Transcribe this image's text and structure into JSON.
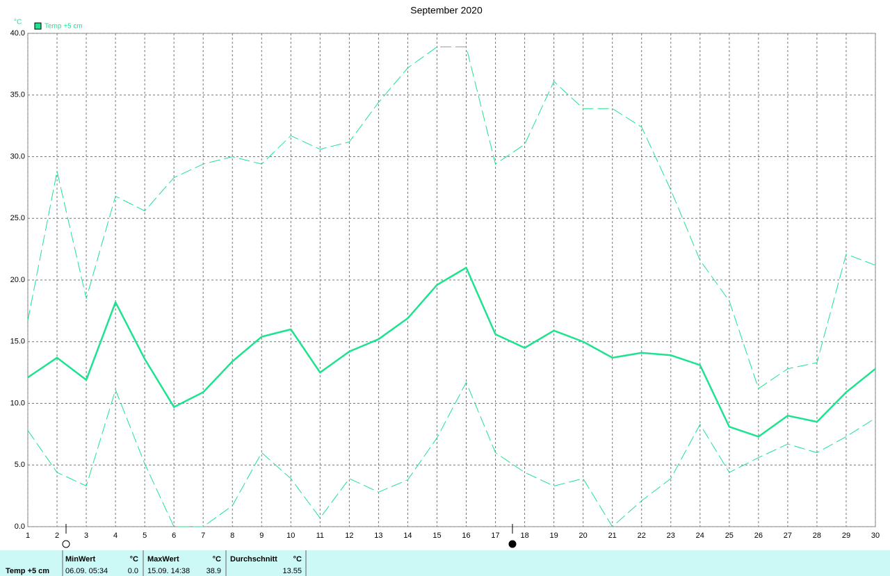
{
  "chart_data": {
    "type": "line",
    "title": "September 2020",
    "y_unit": "°C",
    "x": [
      1,
      2,
      3,
      4,
      5,
      6,
      7,
      8,
      9,
      10,
      11,
      12,
      13,
      14,
      15,
      16,
      17,
      18,
      19,
      20,
      21,
      22,
      23,
      24,
      25,
      26,
      27,
      28,
      29,
      30
    ],
    "xlim": [
      1,
      30
    ],
    "ylim": [
      0,
      40
    ],
    "yticks": [
      {
        "value": 0,
        "label": "0.0"
      },
      {
        "value": 5,
        "label": "5.0"
      },
      {
        "value": 10,
        "label": "10.0"
      },
      {
        "value": 15,
        "label": "15.0"
      },
      {
        "value": 20,
        "label": "20.0"
      },
      {
        "value": 25,
        "label": "25.0"
      },
      {
        "value": 30,
        "label": "30.0"
      },
      {
        "value": 35,
        "label": "35.0"
      },
      {
        "value": 40,
        "label": "40.0"
      }
    ],
    "grid": true,
    "series": [
      {
        "name": "Temp +5 cm",
        "color": "#1de38e",
        "style": "solid",
        "values": [
          12.1,
          13.7,
          11.9,
          18.2,
          13.6,
          9.7,
          10.9,
          13.4,
          15.4,
          16.0,
          12.5,
          14.2,
          15.2,
          16.9,
          19.6,
          21.0,
          15.6,
          14.5,
          15.9,
          15.0,
          13.7,
          14.1,
          13.9,
          13.1,
          8.1,
          7.3,
          9.0,
          8.5,
          10.9,
          12.8
        ]
      },
      {
        "color": "#1de38e",
        "style": "dashed",
        "values": [
          16.7,
          28.8,
          18.5,
          26.8,
          25.6,
          28.3,
          29.4,
          30.0,
          29.4,
          31.7,
          30.6,
          31.2,
          34.4,
          37.2,
          38.9,
          38.9,
          29.4,
          31.0,
          36.1,
          33.9,
          33.9,
          32.4,
          27.3,
          21.6,
          18.3,
          11.2,
          12.8,
          13.3,
          22.1,
          21.2
        ]
      },
      {
        "color": "#1de38e",
        "style": "dashed",
        "values": [
          7.8,
          4.4,
          3.3,
          11.1,
          5.1,
          0.0,
          0.0,
          1.7,
          6.0,
          3.9,
          0.7,
          3.9,
          2.8,
          3.8,
          7.2,
          11.7,
          6.0,
          4.4,
          3.3,
          3.9,
          0.0,
          2.1,
          3.9,
          8.3,
          4.4,
          5.6,
          6.7,
          6.0,
          7.3,
          8.8
        ]
      }
    ]
  },
  "stats": {
    "label": "Temp +5 cm",
    "columns": [
      {
        "header": "MinWert",
        "unit": "°C",
        "time": "06.09.  05:34",
        "value": "0.0"
      },
      {
        "header": "MaxWert",
        "unit": "°C",
        "time": "15.09.  14:38",
        "value": "38.9"
      },
      {
        "header": "Durchschnitt",
        "unit": "°C",
        "value": "13.55"
      }
    ]
  }
}
